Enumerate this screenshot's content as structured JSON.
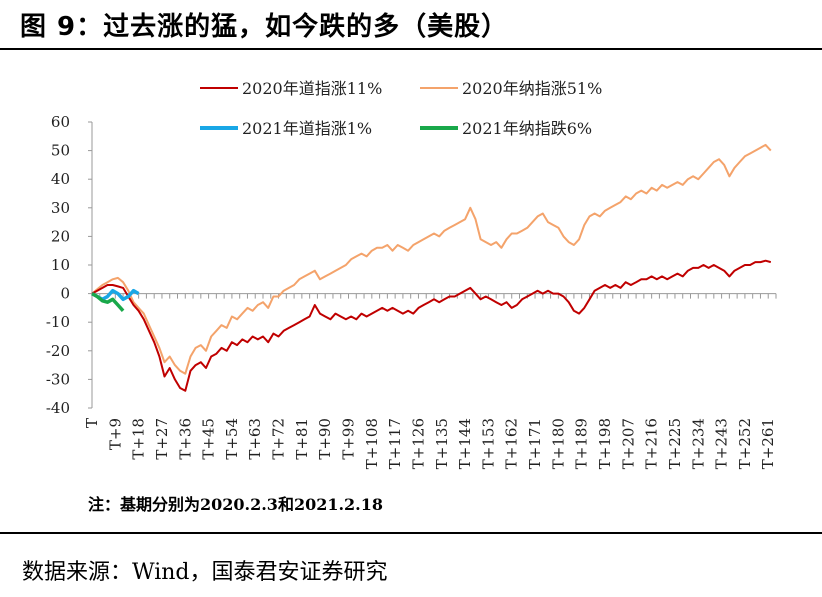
{
  "figure": {
    "title": "图 9：过去涨的猛，如今跌的多（美股）",
    "note": "注：基期分别为2020.2.3和2021.2.18",
    "source": "数据来源：Wind，国泰君安证券研究"
  },
  "chart_data": {
    "type": "line",
    "title": "",
    "xlabel": "",
    "ylabel": "",
    "ylim": [
      -40,
      60
    ],
    "yticks": [
      -40,
      -30,
      -20,
      -10,
      0,
      10,
      20,
      30,
      40,
      50,
      60
    ],
    "xlim": [
      0,
      264
    ],
    "xtick_labels": [
      "T",
      "T+9",
      "T+18",
      "T+27",
      "T+36",
      "T+45",
      "T+54",
      "T+63",
      "T+72",
      "T+81",
      "T+90",
      "T+99",
      "T+108",
      "T+117",
      "T+126",
      "T+135",
      "T+144",
      "T+153",
      "T+162",
      "T+171",
      "T+180",
      "T+189",
      "T+198",
      "T+207",
      "T+216",
      "T+225",
      "T+234",
      "T+243",
      "T+252",
      "T+261"
    ],
    "legend_placement": "top",
    "grid": false,
    "colors": {
      "dow2020": "#c00000",
      "nasdaq2020": "#f4a36b",
      "dow2021": "#19a7e6",
      "nasdaq2021": "#19a84a"
    },
    "series": [
      {
        "name": "2020年道指涨11%",
        "color": "#c00000",
        "points": [
          [
            0,
            0
          ],
          [
            2,
            1
          ],
          [
            4,
            2
          ],
          [
            6,
            3
          ],
          [
            8,
            3
          ],
          [
            10,
            2.5
          ],
          [
            12,
            2
          ],
          [
            14,
            -1
          ],
          [
            16,
            -4
          ],
          [
            18,
            -6
          ],
          [
            20,
            -9
          ],
          [
            22,
            -13
          ],
          [
            24,
            -17
          ],
          [
            26,
            -22
          ],
          [
            28,
            -29
          ],
          [
            30,
            -26
          ],
          [
            32,
            -30
          ],
          [
            34,
            -33
          ],
          [
            36,
            -34
          ],
          [
            38,
            -27
          ],
          [
            40,
            -25
          ],
          [
            42,
            -24
          ],
          [
            44,
            -26
          ],
          [
            46,
            -22
          ],
          [
            48,
            -21
          ],
          [
            50,
            -19
          ],
          [
            52,
            -20
          ],
          [
            54,
            -17
          ],
          [
            56,
            -18
          ],
          [
            58,
            -16
          ],
          [
            60,
            -17
          ],
          [
            62,
            -15
          ],
          [
            64,
            -16
          ],
          [
            66,
            -15
          ],
          [
            68,
            -17
          ],
          [
            70,
            -14
          ],
          [
            72,
            -15
          ],
          [
            74,
            -13
          ],
          [
            76,
            -12
          ],
          [
            78,
            -11
          ],
          [
            80,
            -10
          ],
          [
            82,
            -9
          ],
          [
            84,
            -8
          ],
          [
            86,
            -4
          ],
          [
            88,
            -7
          ],
          [
            90,
            -8
          ],
          [
            92,
            -9
          ],
          [
            94,
            -7
          ],
          [
            96,
            -8
          ],
          [
            98,
            -9
          ],
          [
            100,
            -8
          ],
          [
            102,
            -9
          ],
          [
            104,
            -7
          ],
          [
            106,
            -8
          ],
          [
            108,
            -7
          ],
          [
            110,
            -6
          ],
          [
            112,
            -5
          ],
          [
            114,
            -6
          ],
          [
            116,
            -5
          ],
          [
            118,
            -6
          ],
          [
            120,
            -7
          ],
          [
            122,
            -6
          ],
          [
            124,
            -7
          ],
          [
            126,
            -5
          ],
          [
            128,
            -4
          ],
          [
            130,
            -3
          ],
          [
            132,
            -2
          ],
          [
            134,
            -3
          ],
          [
            136,
            -2
          ],
          [
            138,
            -1
          ],
          [
            140,
            -1
          ],
          [
            142,
            0
          ],
          [
            144,
            1
          ],
          [
            146,
            2
          ],
          [
            148,
            0
          ],
          [
            150,
            -2
          ],
          [
            152,
            -1
          ],
          [
            154,
            -2
          ],
          [
            156,
            -3
          ],
          [
            158,
            -4
          ],
          [
            160,
            -3
          ],
          [
            162,
            -5
          ],
          [
            164,
            -4
          ],
          [
            166,
            -2
          ],
          [
            168,
            -1
          ],
          [
            170,
            0
          ],
          [
            172,
            1
          ],
          [
            174,
            0
          ],
          [
            176,
            1
          ],
          [
            178,
            0
          ],
          [
            180,
            0
          ],
          [
            182,
            -1
          ],
          [
            184,
            -3
          ],
          [
            186,
            -6
          ],
          [
            188,
            -7
          ],
          [
            190,
            -5
          ],
          [
            192,
            -2
          ],
          [
            194,
            1
          ],
          [
            196,
            2
          ],
          [
            198,
            3
          ],
          [
            200,
            2
          ],
          [
            202,
            3
          ],
          [
            204,
            2
          ],
          [
            206,
            4
          ],
          [
            208,
            3
          ],
          [
            210,
            4
          ],
          [
            212,
            5
          ],
          [
            214,
            5
          ],
          [
            216,
            6
          ],
          [
            218,
            5
          ],
          [
            220,
            6
          ],
          [
            222,
            5
          ],
          [
            224,
            6
          ],
          [
            226,
            7
          ],
          [
            228,
            6
          ],
          [
            230,
            8
          ],
          [
            232,
            9
          ],
          [
            234,
            9
          ],
          [
            236,
            10
          ],
          [
            238,
            9
          ],
          [
            240,
            10
          ],
          [
            242,
            9
          ],
          [
            244,
            8
          ],
          [
            246,
            6
          ],
          [
            248,
            8
          ],
          [
            250,
            9
          ],
          [
            252,
            10
          ],
          [
            254,
            10
          ],
          [
            256,
            11
          ],
          [
            258,
            11
          ],
          [
            260,
            11.5
          ],
          [
            262,
            11
          ]
        ]
      },
      {
        "name": "2020年纳指涨51%",
        "color": "#f4a36b",
        "points": [
          [
            0,
            0
          ],
          [
            2,
            1.5
          ],
          [
            4,
            3
          ],
          [
            6,
            4
          ],
          [
            8,
            5
          ],
          [
            10,
            5.5
          ],
          [
            12,
            4
          ],
          [
            14,
            1
          ],
          [
            16,
            -3
          ],
          [
            18,
            -5
          ],
          [
            20,
            -7
          ],
          [
            22,
            -11
          ],
          [
            24,
            -15
          ],
          [
            26,
            -19
          ],
          [
            28,
            -24
          ],
          [
            30,
            -22
          ],
          [
            32,
            -25
          ],
          [
            34,
            -27
          ],
          [
            36,
            -28
          ],
          [
            38,
            -22
          ],
          [
            40,
            -19
          ],
          [
            42,
            -18
          ],
          [
            44,
            -20
          ],
          [
            46,
            -15
          ],
          [
            48,
            -13
          ],
          [
            50,
            -11
          ],
          [
            52,
            -12
          ],
          [
            54,
            -8
          ],
          [
            56,
            -9
          ],
          [
            58,
            -7
          ],
          [
            60,
            -5
          ],
          [
            62,
            -6
          ],
          [
            64,
            -4
          ],
          [
            66,
            -3
          ],
          [
            68,
            -5
          ],
          [
            70,
            -1
          ],
          [
            72,
            -1
          ],
          [
            74,
            1
          ],
          [
            76,
            2
          ],
          [
            78,
            3
          ],
          [
            80,
            5
          ],
          [
            82,
            6
          ],
          [
            84,
            7
          ],
          [
            86,
            8
          ],
          [
            88,
            5
          ],
          [
            90,
            6
          ],
          [
            92,
            7
          ],
          [
            94,
            8
          ],
          [
            96,
            9
          ],
          [
            98,
            10
          ],
          [
            100,
            12
          ],
          [
            102,
            13
          ],
          [
            104,
            14
          ],
          [
            106,
            13
          ],
          [
            108,
            15
          ],
          [
            110,
            16
          ],
          [
            112,
            16
          ],
          [
            114,
            17
          ],
          [
            116,
            15
          ],
          [
            118,
            17
          ],
          [
            120,
            16
          ],
          [
            122,
            15
          ],
          [
            124,
            17
          ],
          [
            126,
            18
          ],
          [
            128,
            19
          ],
          [
            130,
            20
          ],
          [
            132,
            21
          ],
          [
            134,
            20
          ],
          [
            136,
            22
          ],
          [
            138,
            23
          ],
          [
            140,
            24
          ],
          [
            142,
            25
          ],
          [
            144,
            26
          ],
          [
            146,
            30
          ],
          [
            148,
            26
          ],
          [
            150,
            19
          ],
          [
            152,
            18
          ],
          [
            154,
            17
          ],
          [
            156,
            18
          ],
          [
            158,
            16
          ],
          [
            160,
            19
          ],
          [
            162,
            21
          ],
          [
            164,
            21
          ],
          [
            166,
            22
          ],
          [
            168,
            23
          ],
          [
            170,
            25
          ],
          [
            172,
            27
          ],
          [
            174,
            28
          ],
          [
            176,
            25
          ],
          [
            178,
            24
          ],
          [
            180,
            23
          ],
          [
            182,
            20
          ],
          [
            184,
            18
          ],
          [
            186,
            17
          ],
          [
            188,
            19
          ],
          [
            190,
            24
          ],
          [
            192,
            27
          ],
          [
            194,
            28
          ],
          [
            196,
            27
          ],
          [
            198,
            29
          ],
          [
            200,
            30
          ],
          [
            202,
            31
          ],
          [
            204,
            32
          ],
          [
            206,
            34
          ],
          [
            208,
            33
          ],
          [
            210,
            35
          ],
          [
            212,
            36
          ],
          [
            214,
            35
          ],
          [
            216,
            37
          ],
          [
            218,
            36
          ],
          [
            220,
            38
          ],
          [
            222,
            37
          ],
          [
            224,
            38
          ],
          [
            226,
            39
          ],
          [
            228,
            38
          ],
          [
            230,
            40
          ],
          [
            232,
            41
          ],
          [
            234,
            40
          ],
          [
            236,
            42
          ],
          [
            238,
            44
          ],
          [
            240,
            46
          ],
          [
            242,
            47
          ],
          [
            244,
            45
          ],
          [
            246,
            41
          ],
          [
            248,
            44
          ],
          [
            250,
            46
          ],
          [
            252,
            48
          ],
          [
            254,
            49
          ],
          [
            256,
            50
          ],
          [
            258,
            51
          ],
          [
            260,
            52
          ],
          [
            262,
            50
          ]
        ]
      },
      {
        "name": "2021年道指涨1%",
        "color": "#19a7e6",
        "points": [
          [
            0,
            0
          ],
          [
            2,
            -1
          ],
          [
            4,
            -2
          ],
          [
            6,
            -1
          ],
          [
            8,
            1
          ],
          [
            10,
            0
          ],
          [
            12,
            -2
          ],
          [
            14,
            -1
          ],
          [
            16,
            1
          ],
          [
            18,
            0
          ]
        ]
      },
      {
        "name": "2021年纳指跌6%",
        "color": "#19a84a",
        "points": [
          [
            0,
            0
          ],
          [
            2,
            -1
          ],
          [
            4,
            -2.5
          ],
          [
            6,
            -3
          ],
          [
            8,
            -2
          ],
          [
            10,
            -4
          ],
          [
            12,
            -6
          ]
        ]
      }
    ]
  }
}
